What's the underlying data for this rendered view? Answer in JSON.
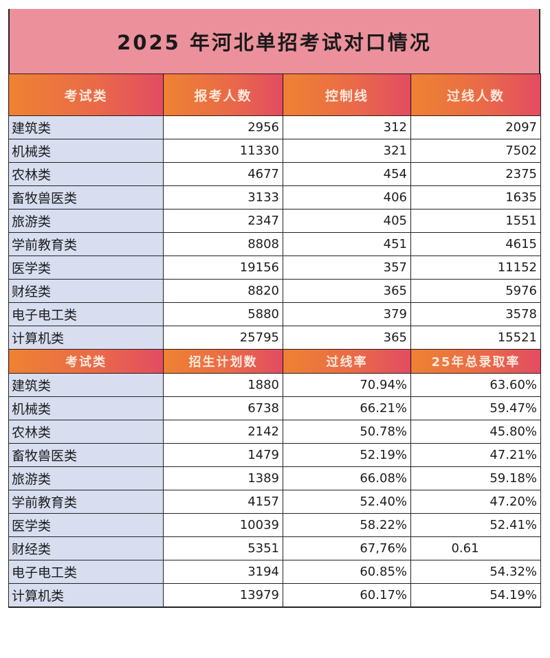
{
  "title": "2025 年河北单招考试对口情况",
  "colors": {
    "title_bg": "#ec919c",
    "header_gradient_start": "#ee8232",
    "header_gradient_end": "#e24c62",
    "category_bg": "#d8def0",
    "border": "#222222"
  },
  "table1": {
    "headers": [
      "考试类",
      "报考人数",
      "控制线",
      "过线人数"
    ],
    "rows": [
      {
        "category": "建筑类",
        "applicants": "2956",
        "control_line": "312",
        "passed": "2097"
      },
      {
        "category": "机械类",
        "applicants": "11330",
        "control_line": "321",
        "passed": "7502"
      },
      {
        "category": "农林类",
        "applicants": "4677",
        "control_line": "454",
        "passed": "2375"
      },
      {
        "category": "畜牧兽医类",
        "applicants": "3133",
        "control_line": "406",
        "passed": "1635"
      },
      {
        "category": "旅游类",
        "applicants": "2347",
        "control_line": "405",
        "passed": "1551"
      },
      {
        "category": "学前教育类",
        "applicants": "8808",
        "control_line": "451",
        "passed": "4615"
      },
      {
        "category": "医学类",
        "applicants": "19156",
        "control_line": "357",
        "passed": "11152"
      },
      {
        "category": "财经类",
        "applicants": "8820",
        "control_line": "365",
        "passed": "5976"
      },
      {
        "category": "电子电工类",
        "applicants": "5880",
        "control_line": "379",
        "passed": "3578"
      },
      {
        "category": "计算机类",
        "applicants": "25795",
        "control_line": "365",
        "passed": "15521"
      }
    ]
  },
  "table2": {
    "headers": [
      "考试类",
      "招生计划数",
      "过线率",
      "25年总录取率"
    ],
    "rows": [
      {
        "category": "建筑类",
        "plan": "1880",
        "pass_rate": "70.94%",
        "admit_rate": "63.60%"
      },
      {
        "category": "机械类",
        "plan": "6738",
        "pass_rate": "66.21%",
        "admit_rate": "59.47%"
      },
      {
        "category": "农林类",
        "plan": "2142",
        "pass_rate": "50.78%",
        "admit_rate": "45.80%"
      },
      {
        "category": "畜牧兽医类",
        "plan": "1479",
        "pass_rate": "52.19%",
        "admit_rate": "47.21%"
      },
      {
        "category": "旅游类",
        "plan": "1389",
        "pass_rate": "66.08%",
        "admit_rate": "59.18%"
      },
      {
        "category": "学前教育类",
        "plan": "4157",
        "pass_rate": "52.40%",
        "admit_rate": "47.20%"
      },
      {
        "category": "医学类",
        "plan": "10039",
        "pass_rate": "58.22%",
        "admit_rate": "52.41%"
      },
      {
        "category": "财经类",
        "plan": "5351",
        "pass_rate": "67,76%",
        "admit_rate": "0.61"
      },
      {
        "category": "电子电工类",
        "plan": "3194",
        "pass_rate": "60.85%",
        "admit_rate": "54.32%"
      },
      {
        "category": "计算机类",
        "plan": "13979",
        "pass_rate": "60.17%",
        "admit_rate": "54.19%"
      }
    ]
  }
}
